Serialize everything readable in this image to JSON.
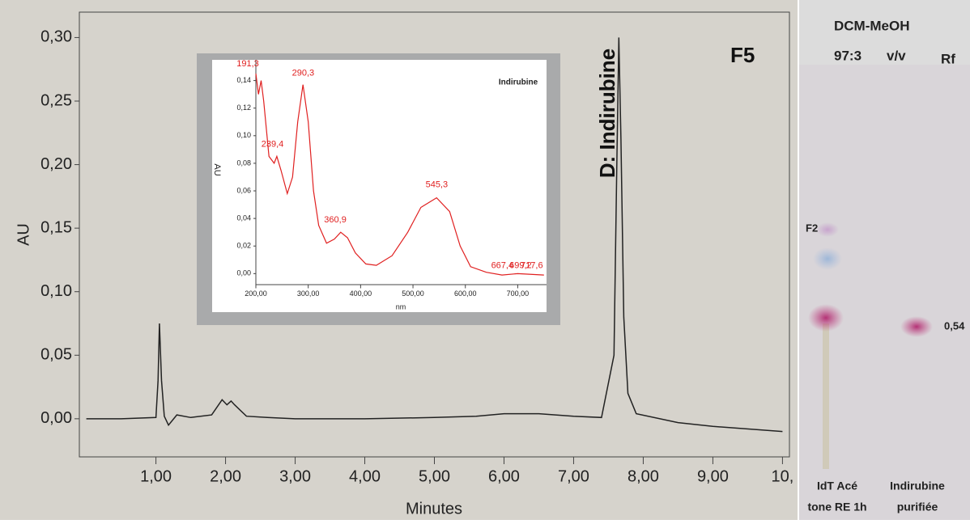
{
  "chart_data": [
    {
      "type": "line",
      "x_label": "Minutes",
      "y_label": "AU",
      "annotation": "D: Indirubine",
      "panel_label": "F5",
      "x": [
        0,
        0.5,
        1.0,
        1.03,
        1.05,
        1.08,
        1.12,
        1.18,
        1.3,
        1.5,
        1.8,
        1.95,
        2.02,
        2.08,
        2.13,
        2.3,
        2.6,
        3,
        4,
        5,
        5.6,
        6,
        6.5,
        7,
        7.4,
        7.58,
        7.62,
        7.65,
        7.68,
        7.72,
        7.78,
        7.9,
        8.5,
        9,
        10
      ],
      "series": [
        {
          "name": "AU",
          "color": "#222222",
          "values": [
            0,
            0,
            0.001,
            0.03,
            0.075,
            0.03,
            0.002,
            -0.005,
            0.003,
            0.001,
            0.003,
            0.015,
            0.011,
            0.014,
            0.011,
            0.002,
            0.001,
            0,
            0,
            0.001,
            0.002,
            0.004,
            0.004,
            0.002,
            0.001,
            0.05,
            0.2,
            0.3,
            0.22,
            0.08,
            0.02,
            0.004,
            -0.003,
            -0.006,
            -0.01
          ]
        }
      ],
      "xlim": [
        -0.1,
        10.1
      ],
      "ylim": [
        -0.03,
        0.32
      ],
      "xticks": [
        {
          "value": 1,
          "label": "1,00"
        },
        {
          "value": 2,
          "label": "2,00"
        },
        {
          "value": 3,
          "label": "3,00"
        },
        {
          "value": 4,
          "label": "4,00"
        },
        {
          "value": 5,
          "label": "5,00"
        },
        {
          "value": 6,
          "label": "6,00"
        },
        {
          "value": 7,
          "label": "7,00"
        },
        {
          "value": 8,
          "label": "8,00"
        },
        {
          "value": 9,
          "label": "9,00"
        },
        {
          "value": 10,
          "label": "10,"
        }
      ],
      "yticks": [
        {
          "value": 0,
          "label": "0,00"
        },
        {
          "value": 0.05,
          "label": "0,05"
        },
        {
          "value": 0.1,
          "label": "0,10"
        },
        {
          "value": 0.15,
          "label": "0,15"
        },
        {
          "value": 0.2,
          "label": "0,20"
        },
        {
          "value": 0.25,
          "label": "0,25"
        },
        {
          "value": 0.3,
          "label": "0,30"
        }
      ]
    },
    {
      "type": "line",
      "title": "Indirubine",
      "x_label": "nm",
      "y_label": "AU",
      "x": [
        200,
        205,
        210,
        215,
        225,
        235,
        240,
        248,
        260,
        270,
        280,
        290,
        300,
        310,
        320,
        335,
        350,
        362,
        375,
        390,
        410,
        430,
        460,
        490,
        515,
        545,
        570,
        590,
        610,
        640,
        670,
        700,
        750
      ],
      "series": [
        {
          "name": "Indirubine",
          "color": "#e02020",
          "values": [
            0.145,
            0.13,
            0.14,
            0.125,
            0.085,
            0.08,
            0.085,
            0.075,
            0.058,
            0.07,
            0.11,
            0.137,
            0.11,
            0.06,
            0.035,
            0.022,
            0.025,
            0.03,
            0.026,
            0.015,
            0.007,
            0.006,
            0.013,
            0.03,
            0.048,
            0.055,
            0.045,
            0.02,
            0.005,
            0.001,
            -0.001,
            0,
            -0.001
          ]
        }
      ],
      "peaks": [
        {
          "label": "191,3",
          "x": 191.3
        },
        {
          "label": "290,3",
          "x": 290.3
        },
        {
          "label": "239,4",
          "x": 239.4
        },
        {
          "label": "360,9",
          "x": 360.9
        },
        {
          "label": "545,3",
          "x": 545.3
        },
        {
          "label": "667,4",
          "x": 667.4
        },
        {
          "label": "699,2",
          "x": 699.2
        },
        {
          "label": "717,6",
          "x": 717.6
        }
      ],
      "xlim": [
        200,
        755
      ],
      "ylim": [
        -0.008,
        0.155
      ],
      "xticks": [
        {
          "value": 200,
          "label": "200,00"
        },
        {
          "value": 300,
          "label": "300,00"
        },
        {
          "value": 400,
          "label": "400,00"
        },
        {
          "value": 500,
          "label": "500,00"
        },
        {
          "value": 600,
          "label": "600,00"
        },
        {
          "value": 700,
          "label": "700,00"
        }
      ],
      "yticks": [
        {
          "value": 0,
          "label": "0,00"
        },
        {
          "value": 0.02,
          "label": "0,02"
        },
        {
          "value": 0.04,
          "label": "0,04"
        },
        {
          "value": 0.06,
          "label": "0,06"
        },
        {
          "value": 0.08,
          "label": "0,08"
        },
        {
          "value": 0.1,
          "label": "0,10"
        },
        {
          "value": 0.12,
          "label": "0,12"
        },
        {
          "value": 0.14,
          "label": "0,14"
        }
      ]
    }
  ],
  "plate": {
    "eluent": "DCM-MeOH",
    "ratio": "97:3",
    "unit": "v/v",
    "rf_header": "Rf",
    "spot_label": "F2",
    "rf_value": "0,54",
    "lane1": [
      "IdT Acé",
      "tone RE 1h"
    ],
    "lane2": [
      "Indirubine",
      "purifiée"
    ]
  }
}
